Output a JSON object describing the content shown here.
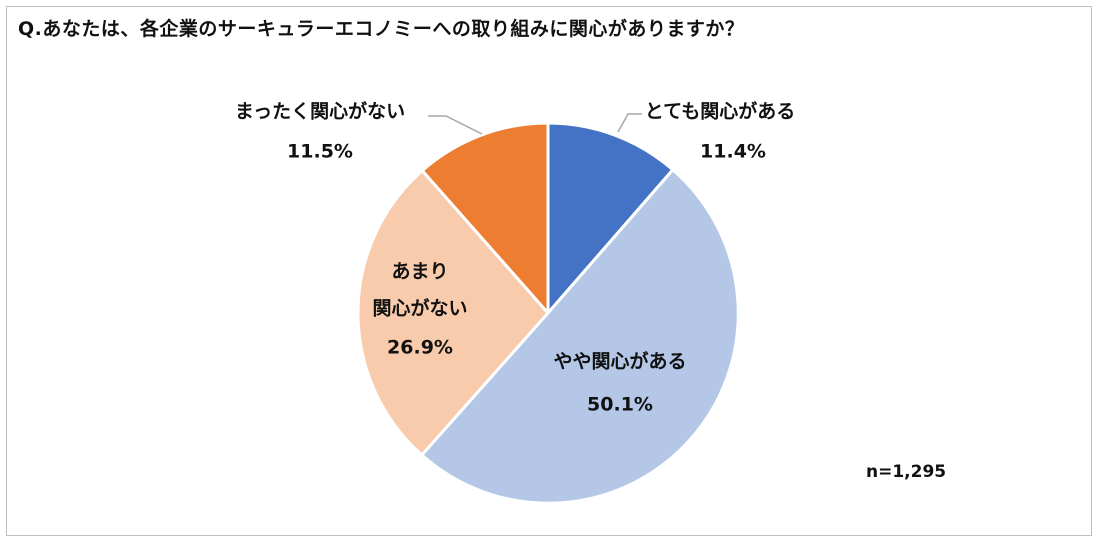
{
  "chart": {
    "question": "Q.あなたは、各企業のサーキュラーエコノミーへの取り組みに関心がありますか？",
    "sample_size": "n=1,295"
  },
  "chart_data": {
    "type": "pie",
    "title": "Q.あなたは、各企業のサーキュラーエコノミーへの取り組みに関心がありますか？",
    "slices": [
      {
        "label": "とても関心がある",
        "value": 11.4,
        "display": "11.4%",
        "color": "#4472C4"
      },
      {
        "label": "やや関心がある",
        "value": 50.1,
        "display": "50.1%",
        "color": "#B4C7E7"
      },
      {
        "label": "あまり関心がない",
        "value": 26.9,
        "display": "26.9%",
        "color": "#F8CBAD"
      },
      {
        "label": "まったく関心がない",
        "value": 11.5,
        "display": "11.5%",
        "color": "#ED7D31"
      }
    ],
    "start_angle": "12 o'clock",
    "direction": "clockwise",
    "annotation": "n=1,295"
  }
}
